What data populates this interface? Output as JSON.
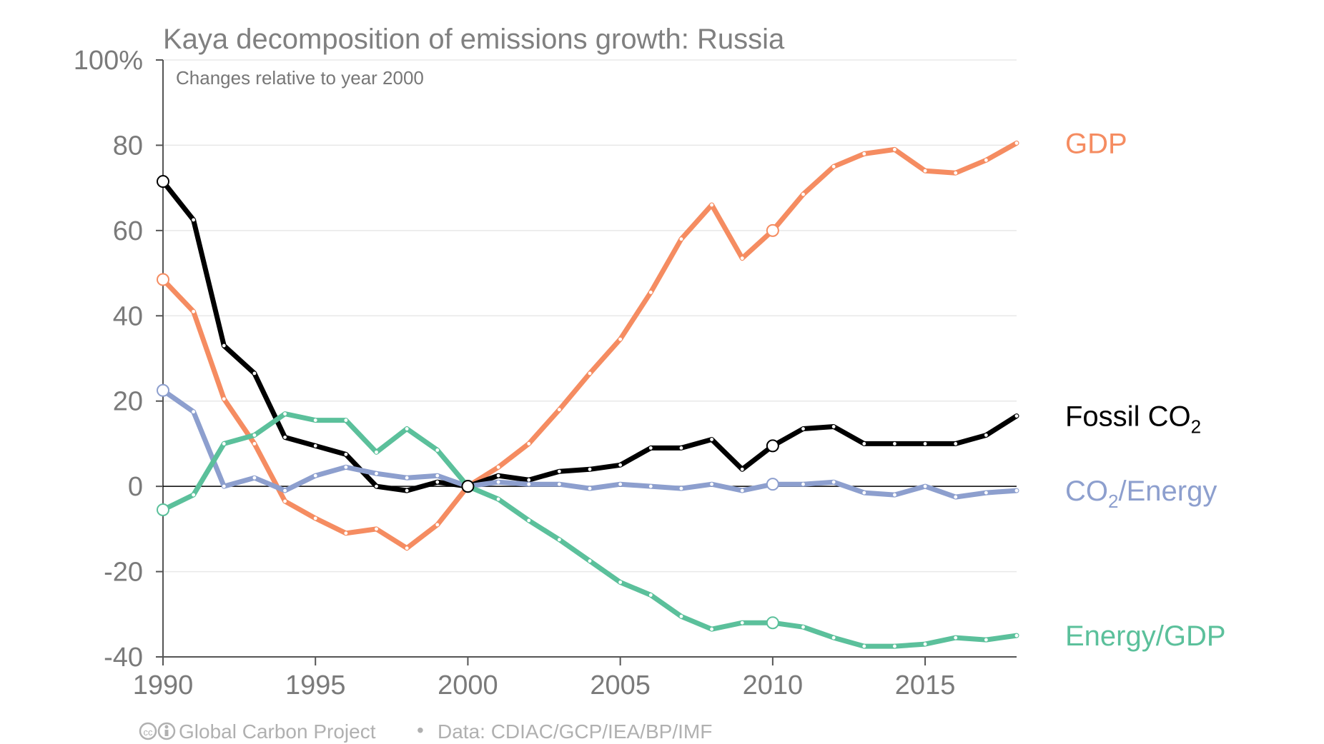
{
  "chart_data": {
    "type": "line",
    "title": "Kaya decomposition of emissions growth: Russia",
    "subtitle": "Changes relative to year 2000",
    "x": [
      1990,
      1991,
      1992,
      1993,
      1994,
      1995,
      1996,
      1997,
      1998,
      1999,
      2000,
      2001,
      2002,
      2003,
      2004,
      2005,
      2006,
      2007,
      2008,
      2009,
      2010,
      2011,
      2012,
      2013,
      2014,
      2015,
      2016,
      2017,
      2018
    ],
    "xlim": [
      1990,
      2018
    ],
    "xticks": [
      "1990",
      "1995",
      "2000",
      "2005",
      "2010",
      "2015"
    ],
    "ylim": [
      -40,
      100
    ],
    "yticks": [
      "100%",
      "80",
      "60",
      "40",
      "20",
      "0",
      "-20",
      "-40"
    ],
    "grid": true,
    "legend_placement": "right, at line ends",
    "highlight_years": [
      1990,
      2000,
      2010
    ],
    "series": [
      {
        "name": "GDP",
        "color": "#f58c61",
        "values": [
          48.5,
          41,
          20.5,
          10,
          -3.5,
          -7.5,
          -11,
          -10,
          -14.5,
          -9,
          0,
          4.5,
          10,
          18,
          26.5,
          34.5,
          45.5,
          58,
          66,
          53.5,
          60,
          68.5,
          75,
          78,
          79,
          74,
          73.5,
          76.5,
          80.5
        ]
      },
      {
        "name": "Fossil CO",
        "sub": "2",
        "color": "#000000",
        "values": [
          71.5,
          62.5,
          33,
          26.5,
          11.5,
          9.5,
          7.5,
          0,
          -1,
          1,
          0,
          2.5,
          1.5,
          3.5,
          4,
          5,
          9,
          9,
          11,
          4,
          9.5,
          13.5,
          14,
          10,
          10,
          10,
          10,
          12,
          16.5
        ]
      },
      {
        "name_pre": "CO",
        "sub": "2",
        "name": "/Energy",
        "color": "#8d9fce",
        "values": [
          22.5,
          17.5,
          0,
          2,
          -1,
          2.5,
          4.5,
          3,
          2,
          2.5,
          0,
          1,
          0.5,
          0.5,
          -0.5,
          0.5,
          0,
          -0.5,
          0.5,
          -1,
          0.5,
          0.5,
          1,
          -1.5,
          -2,
          0,
          -2.5,
          -1.5,
          -1
        ]
      },
      {
        "name": "Energy/GDP",
        "color": "#5bc09b",
        "values": [
          -5.5,
          -2,
          10,
          12,
          17,
          15.5,
          15.5,
          8,
          13.5,
          8.5,
          0,
          -3,
          -8,
          -12.5,
          -17.5,
          -22.5,
          -25.5,
          -30.5,
          -33.5,
          -32,
          -32,
          -33,
          -35.5,
          -37.5,
          -37.5,
          -37,
          -35.5,
          -36,
          -35
        ]
      }
    ]
  },
  "footer": {
    "cc_icon": "creative-commons-icon",
    "source": "Global Carbon Project",
    "separator": "•",
    "data": "Data: CDIAC/GCP/IEA/BP/IMF"
  }
}
